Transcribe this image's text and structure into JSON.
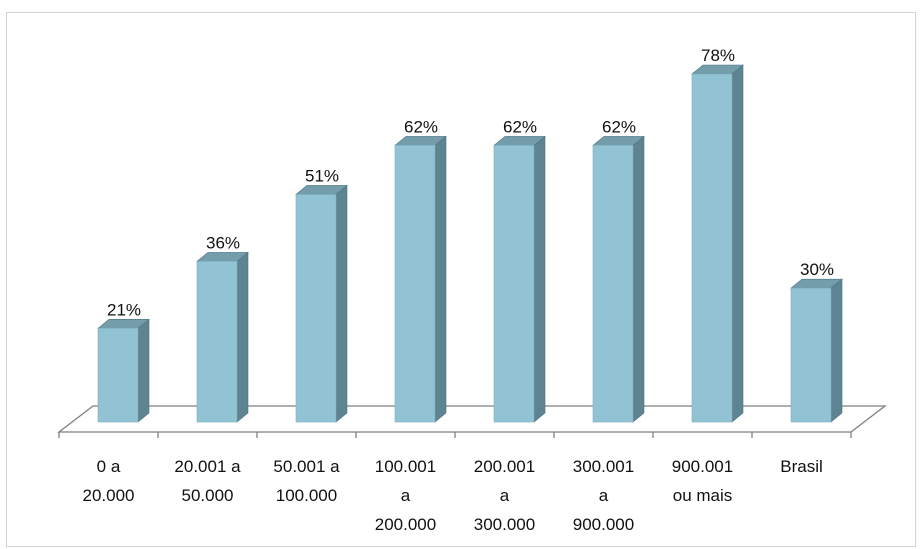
{
  "chart_data": {
    "type": "bar",
    "categories": [
      [
        "0 a",
        "20.000"
      ],
      [
        "20.001 a",
        "50.000"
      ],
      [
        "50.001 a",
        "100.000"
      ],
      [
        "100.001",
        "a",
        "200.000"
      ],
      [
        "200.001",
        "a",
        "300.000"
      ],
      [
        "300.001",
        "a",
        "900.000"
      ],
      [
        "900.001",
        "ou mais"
      ],
      [
        "Brasil"
      ]
    ],
    "values": [
      21,
      36,
      51,
      62,
      62,
      62,
      78,
      30
    ],
    "data_labels": [
      "21%",
      "36%",
      "51%",
      "62%",
      "62%",
      "62%",
      "78%",
      "30%"
    ],
    "ylim": [
      0,
      100
    ],
    "style": "3d-column",
    "grid": false,
    "legend": "none",
    "colors": {
      "bar_front": "#92C3D4",
      "bar_side": "#5E8391",
      "bar_top": "#739DAB",
      "bar_edge": "#4F7480",
      "floor_line": "#7F7F7F"
    }
  }
}
